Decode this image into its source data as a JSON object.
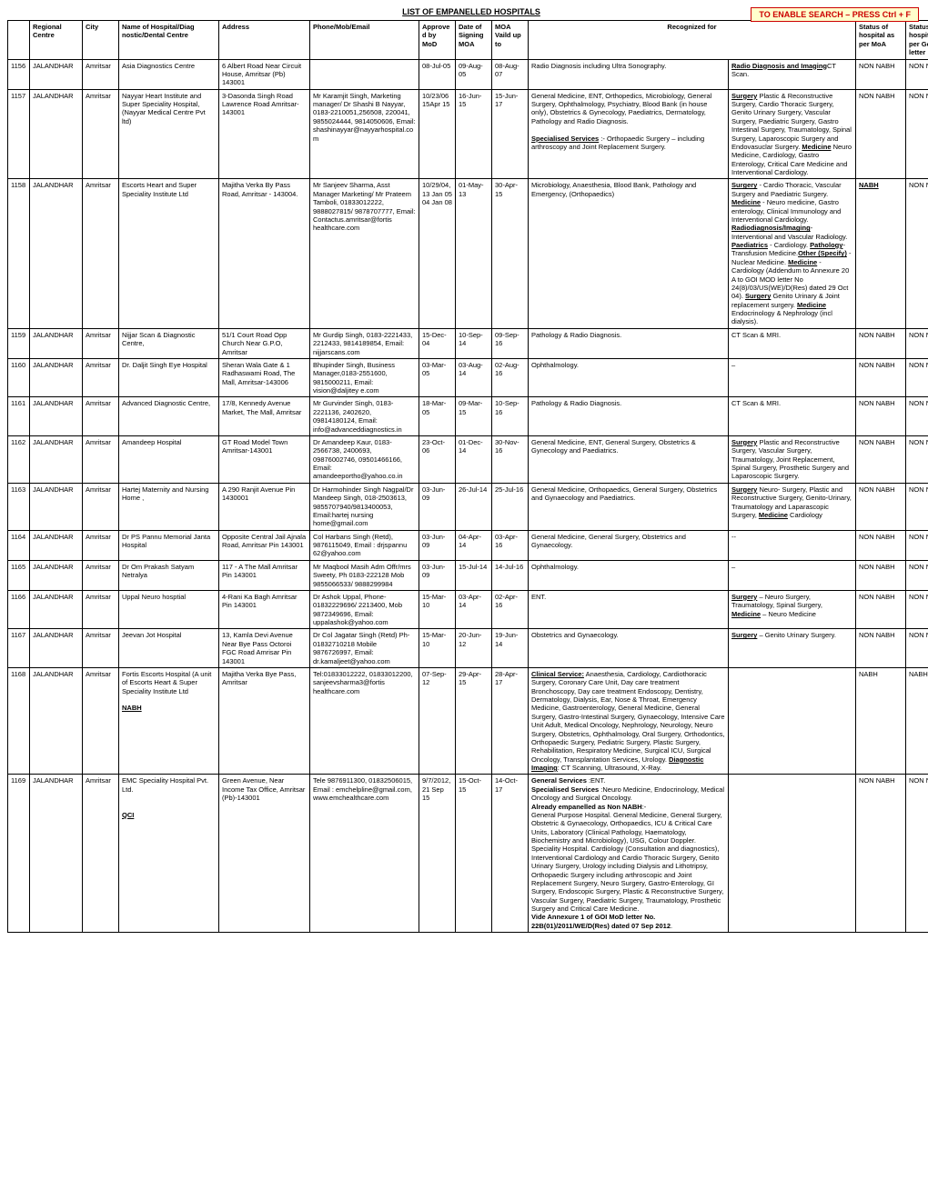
{
  "title": "LIST OF EMPANELLED HOSPITALS",
  "search_hint": "TO ENABLE SEARCH – PRESS Ctrl + F",
  "columns": {
    "idx": "",
    "region": "Regional Centre",
    "city": "City",
    "hospital": "Name of Hospital/Diag nostic/Dental Centre",
    "address": "Address",
    "contact": "Phone/Mob/Email",
    "approved": "Approved by MoD",
    "signing": "Date of Signing MOA",
    "moa": "MOA Vaild up to",
    "recognized": "Recognized for",
    "status_moa": "Status of hospital as per MoA",
    "status_govt": "Status of hospital as per Govt letter"
  },
  "rows": [
    {
      "idx": "1156",
      "region": "JALANDHAR",
      "city": "Amritsar",
      "hospital": "Asia Diagnostics Centre",
      "address": "6 Albert Road Near Circuit House, Amritsar (Pb) 143001",
      "contact": "",
      "approved": "08-Jul-05",
      "signing": "09-Aug-05",
      "moa": "08-Aug-07",
      "recog1": "Radio Diagnosis including Ultra Sonography.",
      "recog2_html": "<u class='bold'>Radio Diagnosis and Imaging</u>CT Scan.",
      "status_moa": "NON NABH",
      "status_govt": "NON NABH"
    },
    {
      "idx": "1157",
      "region": "JALANDHAR",
      "city": "Amritsar",
      "hospital": "Nayyar Heart Institute and Super Speciality Hospital, (Nayyar Medical Centre Pvt ltd)",
      "address": "3-Dasonda Singh Road Lawrence Road Amritsar-143001",
      "contact": "Mr Karamjit Singh, Marketing manager/ Dr Shashi B Nayyar, 0183-2210051,256508, 220041, 9855024444, 9814050606, Email: shashinayyar@nayyarhospital.com",
      "approved": "10/23/06 15Apr 15",
      "signing": "16-Jun-15",
      "moa": "15-Jun-17",
      "recog1_html": "General Medicine, ENT, Orthopedics, Microbiology, General Surgery, Ophthalmology, Psychiatry, Blood Bank (in house only), Obstetrics & Gynecology, Paediatrics, Dermatology, Pathology and Radio Diagnosis.<br><br><u class='bold'>Specialised Services</u> :- Orthopaedic Surgery – including arthroscopy and Joint Replacement Surgery.",
      "recog2_html": "<u class='bold'>Surgery</u>  Plastic & Reconstructive Surgery, Cardio Thoracic Surgery, Genito Urinary Surgery, Vascular Surgery, Paediatric Surgery, Gastro Intestinal Surgery, Traumatology,  Spinal Surgery, Laparoscopic Surgery and Endovasuclar Surgery. <u class='bold'>Medicine</u> Neuro Medicine, Cardiology, Gastro Enterology, Critical Care Medicine and Interventional Cardiology.",
      "status_moa": "NON NABH",
      "status_govt": "NON NABH"
    },
    {
      "idx": "1158",
      "region": "JALANDHAR",
      "city": "Amritsar",
      "hospital": "Escorts Heart and Super Speciality Institute Ltd",
      "address": "Majitha Verka By Pass Road, Amritsar - 143004.",
      "contact": "Mr Sanjeev Sharma, Asst Manager Marketing/ Mr Prateem Tamboli, 01833012222, 9888027815/ 9878707777, Email: Contactus.amritsar@fortis healthcare.com",
      "approved": "10/29/04, 13 Jan 05 04 Jan 08",
      "signing": "01-May-13",
      "moa": "30-Apr-15",
      "recog1": "Microbiology, Anaesthesia, Blood Bank, Pathology and Emergency, (Orthopaedics)",
      "recog2_html": "<u class='bold'>Surgery</u> - Cardio Thoracic, Vascular Surgery and Paediatric Surgery. <u class='bold'>Medicine</u> - Neuro medicine, Gastro enterology, Clinical Immunology and Interventional Cardiology.<br><u class='bold'>Radiodiagnosis/Imaging</u>- Interventional and Vascular Radiology. <u class='bold'>Paediatrics</u> - Cardiology. <u class='bold'>Pathology</u>- Transfusion Medicine.<u class='bold'>Other (Specify)</u> - Nuclear Medicine. <u class='bold'>Medicine</u> - Cardiology (Addendum to Annexure 20 A to GOI MOD letter No 24(8)/03/US(WE)/D(Res) dated 29 Oct 04). <u class='bold'>Surgery</u> Genito Urinary & Joint replacement surgery.  <u class='bold'>Medicine</u> Endocrinology & Nephrology (incl dialysis).",
      "status_moa_html": "<u class='bold'>NABH</u>",
      "status_govt": "NON NABH"
    },
    {
      "idx": "1159",
      "region": "JALANDHAR",
      "city": "Amritsar",
      "hospital": "Nijjar Scan & Diagnostic Centre,",
      "address": "51/1 Court Road Opp Church Near G.P.O, Amritsar",
      "contact": "Mr Gurdip Singh, 0183-2221433, 2212433, 9814189854, Email: nijjarscans.com",
      "approved": "15-Dec-04",
      "signing": "10-Sep-14",
      "moa": "09-Sep-16",
      "recog1": "Pathology & Radio Diagnosis.",
      "recog2": "CT Scan & MRI.",
      "status_moa": "NON NABH",
      "status_govt": "NON NABH"
    },
    {
      "idx": "1160",
      "region": "JALANDHAR",
      "city": "Amritsar",
      "hospital": "Dr. Daljit Singh Eye Hospital",
      "address": "Sheran Wala Gate & 1 Radhaswami Road, The Mall, Amritsar-143006",
      "contact": "Bhupinder Singh, Business Manager,0183-2551600, 9815000211, Email: vision@daljitey e.com",
      "approved": "03-Mar-05",
      "signing": "03-Aug-14",
      "moa": "02-Aug-16",
      "recog1": "Ophthalmology.",
      "recog2": "–",
      "status_moa": "NON NABH",
      "status_govt": "NON NABH"
    },
    {
      "idx": "1161",
      "region": "JALANDHAR",
      "city": "Amritsar",
      "hospital": "Advanced Diagnostic Centre,",
      "address": "17/8, Kennedy Avenue Market, The Mall, Amritsar",
      "contact": "Mr Gurvinder Singh, 0183-2221136, 2402620, 09814180124, Email: info@advanceddiagnostics.in",
      "approved": "18-Mar-05",
      "signing": "09-Mar-15",
      "moa": "10-Sep-16",
      "recog1": "Pathology & Radio Diagnosis.",
      "recog2": "CT Scan & MRI.",
      "status_moa": "NON NABH",
      "status_govt": "NON NABH"
    },
    {
      "idx": "1162",
      "region": "JALANDHAR",
      "city": "Amritsar",
      "hospital": "Amandeep Hospital",
      "address": "GT Road Model Town Amritsar-143001",
      "contact": "Dr Amandeep Kaur, 0183-2566738, 2400693, 09876002746, 09501466166, Email: amandeeportho@yahoo.co.in",
      "approved": "23-Oct-06",
      "signing": "01-Dec-14",
      "moa": "30-Nov-16",
      "recog1": "General Medicine, ENT, General Surgery, Obstetrics & Gynecology and Paediatrics.",
      "recog2_html": "<u class='bold'>Surgery</u> Plastic and Reconstructive Surgery, Vascular Surgery, Traumatology, Joint Replacement, Spinal Surgery, Prosthetic Surgery and Laparoscopic Surgery.",
      "status_moa": "NON NABH",
      "status_govt": "NON NABH"
    },
    {
      "idx": "1163",
      "region": "JALANDHAR",
      "city": "Amritsar",
      "hospital": "Hartej Maternity and Nursing Home ,",
      "address": "A 290 Ranjit Avenue Pin 1430001",
      "contact": "Dr Harmohinder Singh Nagpal/Dr Mandeep Singh, 018-2503613, 9855707940/9813400053, Email:hartej nursing home@gmail.com",
      "approved": "03-Jun-09",
      "signing": "26-Jul-14",
      "moa": "25-Jul-16",
      "recog1": "General Medicine, Orthopaedics, General Surgery, Obstetrics and Gynaecology and Paediatrics.",
      "recog2_html": "<u class='bold'>Surgery</u>  Neuro- Surgery, Plastic and Reconstructive Surgery, Genito-Urinary, Traumatology and Laparascopic Surgery, <u class='bold'>Medicine</u> Cardiology",
      "status_moa": "NON NABH",
      "status_govt": "NON NABH"
    },
    {
      "idx": "1164",
      "region": "JALANDHAR",
      "city": "Amritsar",
      "hospital": "Dr PS Pannu Memorial Janta Hospital",
      "address": "Opposite Central Jail Ajnala Road, Amritsar Pin 143001",
      "contact": "Col Harbans Singh (Retd), 9876115049, Email : drjspannu 62@yahoo.com",
      "approved": "03-Jun-09",
      "signing": "04-Apr-14",
      "moa": "03-Apr-16",
      "recog1": "General Medicine, General Surgery, Obstetrics and Gynaecology.",
      "recog2": "--",
      "status_moa": "NON NABH",
      "status_govt": "NON NABH"
    },
    {
      "idx": "1165",
      "region": "JALANDHAR",
      "city": "Amritsar",
      "hospital": "Dr Om Prakash Satyam Netralya",
      "address": "117 - A The Mall Amritsar Pin 143001",
      "contact": "Mr Maqbool Masih Adm Offr/mrs Sweety, Ph 0183-222128 Mob 9855066533/ 9888299984",
      "approved": "03-Jun-09",
      "signing": "15-Jul-14",
      "moa": "14-Jul-16",
      "recog1": "Ophthalmology.",
      "recog2": "–",
      "status_moa": "NON NABH",
      "status_govt": "NON NABH"
    },
    {
      "idx": "1166",
      "region": "JALANDHAR",
      "city": "Amritsar",
      "hospital": "Uppal Neuro hosptial",
      "address": "4-Rani Ka Bagh Amritsar Pin 143001",
      "contact": "Dr Ashok Uppal, Phone-01832229696/ 2213400, Mob 9872349696, Email: uppalashok@yahoo.com",
      "approved": "15-Mar-10",
      "signing": "03-Apr-14",
      "moa": "02-Apr-16",
      "recog1": "ENT.",
      "recog2_html": "<u class='bold'>Surgery</u> – Neuro Surgery, Traumatology, Spinal Surgery, <u class='bold'>Medicine</u> – Neuro Medicine",
      "status_moa": "NON NABH",
      "status_govt": "NON NABH"
    },
    {
      "idx": "1167",
      "region": "JALANDHAR",
      "city": "Amritsar",
      "hospital": "Jeevan Jot Hospital",
      "address": "13, Kamla Devi Avenue Near Bye Pass Octoroi FGC Road Amrisar Pin 143001",
      "contact": "Dr Col Jagatar Singh (Retd) Ph- 01832710218 Mobile 9876726997, Email: dr.kamaljeet@yahoo.com",
      "approved": "15-Mar-10",
      "signing": "20-Jun-12",
      "moa": "19-Jun-14",
      "recog1": "Obstetrics and Gynaecology.",
      "recog2_html": "<u class='bold'>Surgery</u> – Genito Urinary Surgery.",
      "status_moa": "NON NABH",
      "status_govt": "NON NABH"
    },
    {
      "idx": "1168",
      "region": "JALANDHAR",
      "city": "Amritsar",
      "hospital_html": "Fortis Escorts Hospital (A unit of Escorts Heart & Super Speciality Institute Ltd<br><br><u class='bold'>NABH</u>",
      "address": "Majitha Verka Bye Pass, Amritsar",
      "contact": "Tel:01833012222, 01833012200, sanjeevsharma3@fortis healthcare.com",
      "approved": "07-Sep-12",
      "signing": "29-Apr-15",
      "moa": "28-Apr-17",
      "recog1_html": "<u class='bold'>Clinical Service:</u> Anaesthesia, Cardiology, Cardiothoracic Surgery, Coronary Care Unit, Day care treatment Bronchoscopy, Day care treatment Endoscopy, Dentistry, Dermatology, Dialysis, Ear, Nose & Throat, Emergency Medicine, Gastroenterology, General Medicine, General Surgery, Gastro-Intestinal Surgery, Gynaecology, Intensive Care Unit Adult, Medical Oncology, Nephrology, Neurology, Neuro Surgery, Obstetrics, Ophthalmology, Oral Surgery, Orthodontics, Orthopaedic Surgery, Pediatric Surgery, Plastic Surgery, Rehabilitation, Respiratory Medicine, Surgical ICU, Surgical Oncology, Transplantation Services, Urology. <u class='bold'>Diagnostic Imaging</u>: CT Scanning, Ultrasound, X-Ray.",
      "recog2": "",
      "status_moa": "NABH",
      "status_govt": "NABH"
    },
    {
      "idx": "1169",
      "region": "JALANDHAR",
      "city": "Amritsar",
      "hospital_html": "EMC Speciality  Hospital Pvt. Ltd.<br><br><br><u class='bold'>QCI</u>",
      "address": "Green Avenue, Near Income Tax Office, Amritsar (Pb)-143001",
      "contact": "Tele 9876911300,            01832506015, Email   :   emchelpline@gmail.com, www.emchealthcare.com",
      "approved": "9/7/2012, 21 Sep 15",
      "signing": "15-Oct-15",
      "moa": "14-Oct-17",
      "recog1_html": "<span class='bold'>General Services</span> :ENT.<br><span class='bold'>Specialised Services</span> :Neuro Medicine, Endocrinology, Medical Oncology and Surgical Oncology.<br><span class='bold'>Already empanelled as Non NABH</span>:-<br>General Purpose Hospital. General Medicine, General Surgery, Obstetric & Gynaecology, Orthopaedics, ICU & Critical Care Units, Laboratory (Clinical Pathology, Haematology, Biochemistry and Microbiology), USG, Colour Doppler.<br>Speciality Hospital. Cardiology (Consultation and diagnostics), Interventional Cardiology and Cardio Thoracic Surgery, Genito Urinary Surgery, Urology including Dialysis and Lithotripsy, Orthopaedic Surgery including arthroscopic and Joint Replacement Surgery, Neuro Surgery, Gastro-Enterology, GI Surgery, Endoscopic Surgery, Plastic & Reconstructive Surgery, Vascular Surgery, Paediatric Surgery, Traumatology, Prosthetic Surgery and Critical Care Medicine.<br><span class='bold'>Vide Annexure 1 of GOI MoD letter No. 22B(01)/2011/WE/D(Res) dated 07 Sep 2012</span>.",
      "recog2": "",
      "status_moa": "NON NABH",
      "status_govt": "NON NABH"
    }
  ]
}
